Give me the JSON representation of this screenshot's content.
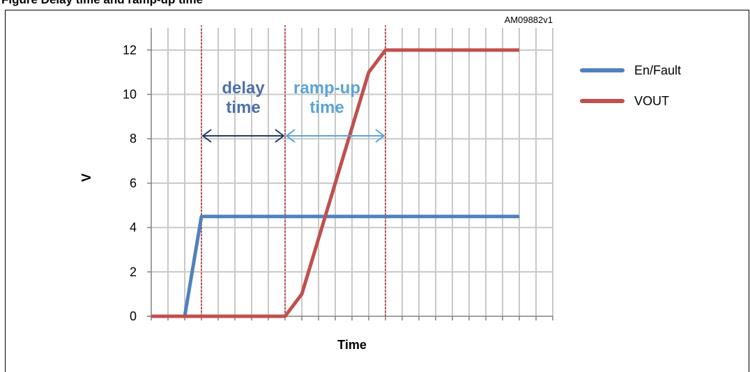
{
  "figure": {
    "title": "Figure    Delay time and ramp-up time",
    "code": "AM09882v1"
  },
  "chart_data": {
    "type": "line",
    "xlabel": "Time",
    "ylabel": "V",
    "x_ticks_count": 24,
    "ylim": [
      0,
      13
    ],
    "yticks": [
      0,
      2,
      4,
      6,
      8,
      10,
      12
    ],
    "grid": true,
    "legend_position": "right",
    "series": [
      {
        "name": "En/Fault",
        "color": "#4F81BD",
        "points": [
          [
            0,
            0
          ],
          [
            2,
            0
          ],
          [
            3,
            4.5
          ],
          [
            22,
            4.5
          ]
        ]
      },
      {
        "name": "VOUT",
        "color": "#C0504D",
        "points": [
          [
            0,
            0
          ],
          [
            8,
            0
          ],
          [
            9,
            1
          ],
          [
            13,
            11
          ],
          [
            14,
            12
          ],
          [
            22,
            12
          ]
        ]
      }
    ],
    "markers": [
      3,
      8,
      14
    ],
    "annotations": [
      {
        "text": [
          "delay",
          "time"
        ],
        "color": "#4F6FA8",
        "from": 3,
        "to": 8
      },
      {
        "text": [
          "ramp-up",
          "time"
        ],
        "color": "#5BA3D9",
        "from": 8,
        "to": 14
      }
    ]
  }
}
